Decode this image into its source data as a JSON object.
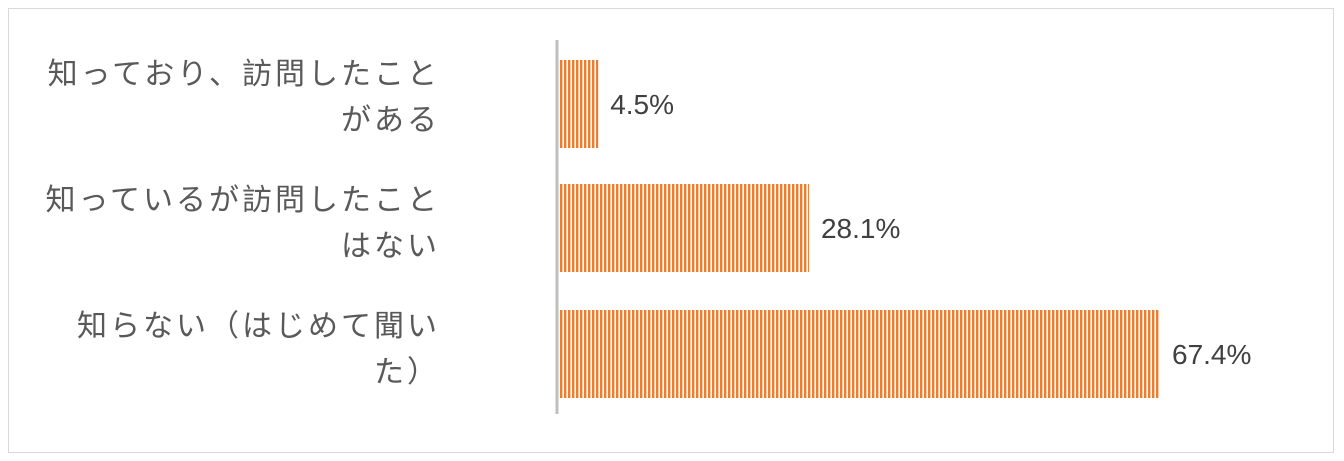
{
  "chart_data": {
    "type": "bar",
    "orientation": "horizontal",
    "categories": [
      "知っており、訪問したことがある",
      "知っているが訪問したことはない",
      "知らない（はじめて聞いた）"
    ],
    "category_lines": [
      [
        "知っており、訪問したこと",
        "がある"
      ],
      [
        "知っているが訪問したこと",
        "はない"
      ],
      [
        "知らない（はじめて聞い",
        "た）"
      ]
    ],
    "values": [
      4.5,
      28.1,
      67.4
    ],
    "data_labels": [
      "4.5%",
      "28.1%",
      "67.4%"
    ],
    "unit": "%",
    "xlim": [
      0,
      67.4
    ],
    "grid": false,
    "legend": "none",
    "bar_color": "#ed7d31",
    "bar_fill": "vertical-stripes",
    "axis_color": "#bfbfbf"
  }
}
